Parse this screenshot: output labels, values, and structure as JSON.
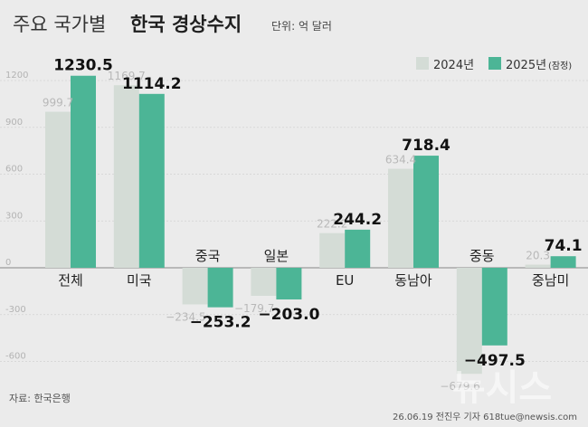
{
  "header": {
    "title_prefix": "주요 국가별",
    "title_bold": "한국 경상수지",
    "unit": "단위: 억 달러"
  },
  "footer": {
    "source": "자료: 한국은행",
    "credit": "26.06.19 전진우 기자 618tue@newsis.com",
    "watermark": "뉴시스"
  },
  "colors": {
    "series_2024": "#d4dcd6",
    "series_2025": "#4cb596",
    "background": "#ebebeb"
  },
  "chart_data": {
    "type": "bar",
    "categories": [
      "전체",
      "미국",
      "중국",
      "일본",
      "EU",
      "동남아",
      "중동",
      "중남미"
    ],
    "series": [
      {
        "name": "2024년",
        "values": [
          999.7,
          1169.7,
          -234.5,
          -179.7,
          222.2,
          634.4,
          -679.6,
          20.3
        ],
        "labels": [
          "999.7",
          "1169.7",
          "−234.5",
          "−179.7",
          "222.2",
          "634.4",
          "−679.6",
          "20.3"
        ]
      },
      {
        "name": "2025년",
        "name_suffix": "(잠정)",
        "values": [
          1230.5,
          1114.2,
          -253.2,
          -203.0,
          244.2,
          718.4,
          -497.5,
          74.1
        ],
        "labels": [
          "1230.5",
          "1114.2",
          "−253.2",
          "−203.0",
          "244.2",
          "718.4",
          "−497.5",
          "74.1"
        ]
      }
    ],
    "y_ticks": [
      "1200",
      "900",
      "600",
      "300",
      "0",
      "-300",
      "-600"
    ],
    "y_tick_values": [
      1200,
      900,
      600,
      300,
      0,
      -300,
      -600
    ],
    "ylim": [
      -700,
      1300
    ],
    "legend_position": "top-right",
    "grid": true
  }
}
